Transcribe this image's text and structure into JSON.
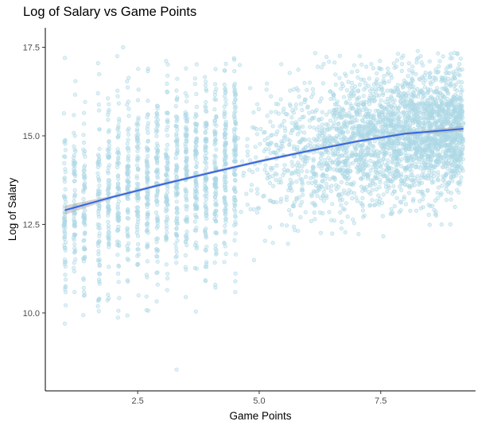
{
  "chart_data": {
    "type": "scatter",
    "title": "Log of Salary vs Game Points",
    "xlabel": "Game Points",
    "ylabel": "Log of Salary",
    "xlim": [
      0.6,
      9.45
    ],
    "ylim": [
      7.8,
      18.05
    ],
    "xticks": [
      2.5,
      5.0,
      7.5
    ],
    "yticks": [
      10.0,
      12.5,
      15.0,
      17.5
    ],
    "grid": false,
    "point_color": "#add8e6",
    "trend_color": "#3366e6",
    "trend_band_color": "#b0b0b0",
    "trend": {
      "x": [
        1.0,
        2.0,
        3.0,
        4.0,
        5.0,
        6.0,
        7.0,
        8.0,
        9.2
      ],
      "y": [
        12.9,
        13.28,
        13.63,
        13.96,
        14.28,
        14.57,
        14.84,
        15.06,
        15.2
      ]
    },
    "scatter_summary": {
      "x_discrete": [
        1.0,
        1.2,
        1.4,
        1.7,
        1.9,
        2.1,
        2.3,
        2.5,
        2.7,
        2.9,
        3.1,
        3.3,
        3.5,
        3.7,
        3.9,
        4.1,
        4.3,
        4.5
      ],
      "x_continuous_range": [
        4.5,
        9.2
      ],
      "y_mean_at_x": [
        [
          1.0,
          12.9
        ],
        [
          3.0,
          13.6
        ],
        [
          5.0,
          14.3
        ],
        [
          7.0,
          14.8
        ],
        [
          9.0,
          15.2
        ]
      ],
      "y_spread_at_x": [
        [
          1.0,
          10.3,
          16.8
        ],
        [
          3.0,
          10.8,
          17.0
        ],
        [
          5.0,
          11.2,
          17.2
        ],
        [
          7.0,
          12.0,
          17.4
        ],
        [
          9.0,
          12.5,
          17.3
        ]
      ],
      "notable_points": [
        [
          3.3,
          8.4
        ],
        [
          1.0,
          9.7
        ],
        [
          1.0,
          17.2
        ],
        [
          2.2,
          17.5
        ],
        [
          4.6,
          17.0
        ]
      ]
    }
  }
}
